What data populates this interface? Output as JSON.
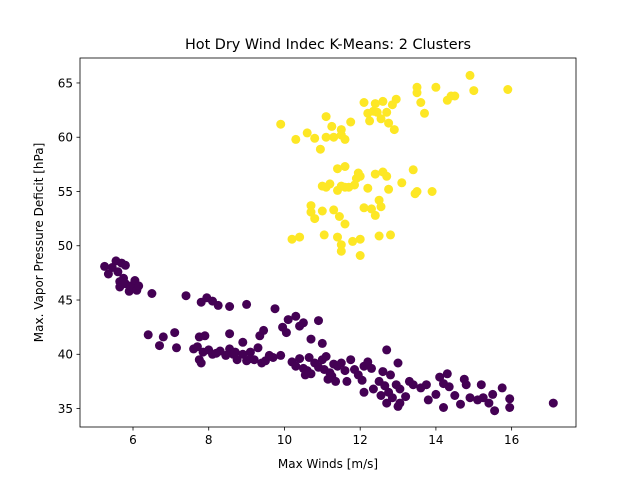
{
  "chart_data": {
    "type": "scatter",
    "title": "Hot Dry Wind Indec K-Means: 2 Clusters",
    "xlabel": "Max Winds [m/s]",
    "ylabel": "Max. Vapor Pressure Deficit [hPa]",
    "xlim": [
      4.6,
      17.7
    ],
    "ylim": [
      33.3,
      67.3
    ],
    "xticks": [
      6,
      8,
      10,
      12,
      14,
      16
    ],
    "yticks": [
      35,
      40,
      45,
      50,
      55,
      60,
      65
    ],
    "grid": false,
    "legend": "none",
    "series": [
      {
        "color": "#fde725",
        "points": [
          [
            9.9,
            61.2
          ],
          [
            10.3,
            59.8
          ],
          [
            10.6,
            60.4
          ],
          [
            10.8,
            59.9
          ],
          [
            10.95,
            58.9
          ],
          [
            11.1,
            60.0
          ],
          [
            11.1,
            61.9
          ],
          [
            11.25,
            61.0
          ],
          [
            11.3,
            60.0
          ],
          [
            11.5,
            60.7
          ],
          [
            11.6,
            59.8
          ],
          [
            11.5,
            60.2
          ],
          [
            11.75,
            61.4
          ],
          [
            12.1,
            63.2
          ],
          [
            12.2,
            62.2
          ],
          [
            12.25,
            61.5
          ],
          [
            12.35,
            62.4
          ],
          [
            12.4,
            63.1
          ],
          [
            12.45,
            62.3
          ],
          [
            12.55,
            61.7
          ],
          [
            12.6,
            63.3
          ],
          [
            12.7,
            62.3
          ],
          [
            12.75,
            61.3
          ],
          [
            12.85,
            63.0
          ],
          [
            12.9,
            60.7
          ],
          [
            12.95,
            63.5
          ],
          [
            13.7,
            62.2
          ],
          [
            13.6,
            63.2
          ],
          [
            13.5,
            64.6
          ],
          [
            13.5,
            64.1
          ],
          [
            14.0,
            64.6
          ],
          [
            14.3,
            63.4
          ],
          [
            14.4,
            63.8
          ],
          [
            14.5,
            63.8
          ],
          [
            14.9,
            65.7
          ],
          [
            15.0,
            64.3
          ],
          [
            15.9,
            64.4
          ],
          [
            11.4,
            57.1
          ],
          [
            11.6,
            57.3
          ],
          [
            11.7,
            55.4
          ],
          [
            11.9,
            56.2
          ],
          [
            11.95,
            56.7
          ],
          [
            12.0,
            56.4
          ],
          [
            11.85,
            55.6
          ],
          [
            12.2,
            55.3
          ],
          [
            12.4,
            56.6
          ],
          [
            12.5,
            54.2
          ],
          [
            12.6,
            56.8
          ],
          [
            12.7,
            56.4
          ],
          [
            12.75,
            55.2
          ],
          [
            13.1,
            55.8
          ],
          [
            13.4,
            57.0
          ],
          [
            13.5,
            55.0
          ],
          [
            13.45,
            54.8
          ],
          [
            13.9,
            55.0
          ],
          [
            11.0,
            55.5
          ],
          [
            11.1,
            55.4
          ],
          [
            11.2,
            55.7
          ],
          [
            11.4,
            55.1
          ],
          [
            11.5,
            55.5
          ],
          [
            11.6,
            55.4
          ],
          [
            10.7,
            53.7
          ],
          [
            10.7,
            53.1
          ],
          [
            10.8,
            52.5
          ],
          [
            11.0,
            53.2
          ],
          [
            11.3,
            53.3
          ],
          [
            11.45,
            52.7
          ],
          [
            11.6,
            52.0
          ],
          [
            12.1,
            53.5
          ],
          [
            12.3,
            53.4
          ],
          [
            12.4,
            52.8
          ],
          [
            12.55,
            53.6
          ],
          [
            10.2,
            50.6
          ],
          [
            10.4,
            50.8
          ],
          [
            11.05,
            51.0
          ],
          [
            11.4,
            50.8
          ],
          [
            11.5,
            50.1
          ],
          [
            11.5,
            49.5
          ],
          [
            11.8,
            50.4
          ],
          [
            12.0,
            50.6
          ],
          [
            12.0,
            49.1
          ],
          [
            12.5,
            50.9
          ],
          [
            12.8,
            51.0
          ]
        ]
      },
      {
        "color": "#440154",
        "points": [
          [
            5.25,
            48.1
          ],
          [
            5.35,
            47.4
          ],
          [
            5.45,
            48.0
          ],
          [
            5.55,
            48.6
          ],
          [
            5.6,
            47.6
          ],
          [
            5.65,
            46.7
          ],
          [
            5.65,
            46.2
          ],
          [
            5.7,
            48.4
          ],
          [
            5.75,
            47.0
          ],
          [
            5.8,
            48.2
          ],
          [
            5.8,
            46.5
          ],
          [
            5.9,
            45.8
          ],
          [
            5.95,
            46.3
          ],
          [
            6.05,
            46.8
          ],
          [
            6.1,
            45.9
          ],
          [
            6.15,
            46.3
          ],
          [
            6.5,
            45.6
          ],
          [
            7.4,
            45.4
          ],
          [
            7.8,
            44.8
          ],
          [
            7.95,
            45.2
          ],
          [
            8.1,
            44.9
          ],
          [
            8.25,
            44.5
          ],
          [
            8.55,
            44.4
          ],
          [
            9.0,
            44.6
          ],
          [
            9.75,
            44.2
          ],
          [
            6.4,
            41.8
          ],
          [
            6.7,
            40.8
          ],
          [
            6.8,
            41.6
          ],
          [
            7.1,
            42.0
          ],
          [
            7.15,
            40.6
          ],
          [
            7.6,
            40.5
          ],
          [
            7.7,
            40.7
          ],
          [
            7.75,
            41.6
          ],
          [
            7.9,
            41.7
          ],
          [
            7.85,
            40.2
          ],
          [
            8.0,
            40.4
          ],
          [
            8.1,
            40.0
          ],
          [
            8.3,
            40.3
          ],
          [
            8.55,
            41.9
          ],
          [
            8.55,
            40.5
          ],
          [
            8.65,
            40.0
          ],
          [
            8.7,
            40.2
          ],
          [
            8.9,
            41.1
          ],
          [
            9.1,
            40.2
          ],
          [
            9.3,
            40.6
          ],
          [
            9.35,
            41.7
          ],
          [
            9.45,
            42.2
          ],
          [
            7.75,
            39.5
          ],
          [
            7.8,
            39.2
          ],
          [
            8.2,
            40.1
          ],
          [
            8.45,
            39.9
          ],
          [
            8.75,
            39.5
          ],
          [
            8.9,
            40.0
          ],
          [
            9.0,
            39.4
          ],
          [
            9.1,
            39.6
          ],
          [
            9.2,
            39.5
          ],
          [
            9.4,
            39.2
          ],
          [
            9.5,
            39.4
          ],
          [
            9.6,
            39.9
          ],
          [
            9.7,
            39.7
          ],
          [
            9.9,
            39.9
          ],
          [
            9.95,
            42.5
          ],
          [
            10.05,
            42.0
          ],
          [
            10.1,
            43.2
          ],
          [
            10.3,
            43.5
          ],
          [
            10.4,
            42.6
          ],
          [
            10.5,
            42.9
          ],
          [
            10.9,
            43.1
          ],
          [
            10.7,
            41.4
          ],
          [
            11.0,
            41.0
          ],
          [
            10.2,
            39.3
          ],
          [
            10.3,
            38.9
          ],
          [
            10.4,
            39.6
          ],
          [
            10.5,
            38.7
          ],
          [
            10.6,
            38.5
          ],
          [
            10.7,
            38.2
          ],
          [
            10.8,
            39.2
          ],
          [
            10.9,
            38.8
          ],
          [
            11.0,
            39.5
          ],
          [
            11.05,
            38.6
          ],
          [
            11.1,
            39.8
          ],
          [
            11.2,
            38.3
          ],
          [
            11.25,
            38.0
          ],
          [
            11.3,
            39.1
          ],
          [
            11.35,
            37.5
          ],
          [
            11.4,
            38.9
          ],
          [
            11.5,
            39.2
          ],
          [
            11.6,
            38.5
          ],
          [
            11.65,
            37.5
          ],
          [
            11.75,
            39.5
          ],
          [
            11.85,
            38.6
          ],
          [
            11.95,
            38.1
          ],
          [
            12.05,
            37.6
          ],
          [
            12.1,
            38.9
          ],
          [
            12.2,
            39.3
          ],
          [
            12.3,
            38.7
          ],
          [
            12.1,
            36.5
          ],
          [
            10.55,
            38.1
          ],
          [
            10.65,
            39.7
          ],
          [
            11.15,
            37.7
          ],
          [
            12.35,
            36.8
          ],
          [
            12.5,
            37.5
          ],
          [
            12.55,
            36.2
          ],
          [
            12.6,
            38.4
          ],
          [
            12.65,
            37.1
          ],
          [
            12.7,
            40.4
          ],
          [
            12.75,
            36.5
          ],
          [
            12.8,
            38.1
          ],
          [
            12.7,
            35.5
          ],
          [
            12.85,
            36.0
          ],
          [
            12.95,
            37.2
          ],
          [
            13.0,
            39.2
          ],
          [
            13.05,
            35.5
          ],
          [
            13.0,
            35.2
          ],
          [
            13.05,
            36.8
          ],
          [
            13.2,
            36.1
          ],
          [
            13.3,
            37.5
          ],
          [
            13.4,
            37.2
          ],
          [
            13.6,
            36.9
          ],
          [
            13.75,
            37.2
          ],
          [
            13.8,
            35.8
          ],
          [
            14.0,
            36.3
          ],
          [
            14.1,
            37.9
          ],
          [
            14.2,
            37.3
          ],
          [
            14.3,
            38.2
          ],
          [
            14.35,
            37.0
          ],
          [
            14.2,
            35.1
          ],
          [
            14.5,
            36.2
          ],
          [
            14.65,
            35.4
          ],
          [
            14.75,
            37.7
          ],
          [
            14.8,
            37.2
          ],
          [
            14.9,
            36.0
          ],
          [
            15.1,
            35.8
          ],
          [
            15.2,
            37.2
          ],
          [
            15.25,
            36.0
          ],
          [
            15.4,
            35.5
          ],
          [
            15.5,
            36.3
          ],
          [
            15.55,
            34.8
          ],
          [
            15.75,
            36.9
          ],
          [
            15.95,
            35.9
          ],
          [
            15.95,
            35.1
          ],
          [
            17.1,
            35.5
          ]
        ]
      }
    ]
  }
}
